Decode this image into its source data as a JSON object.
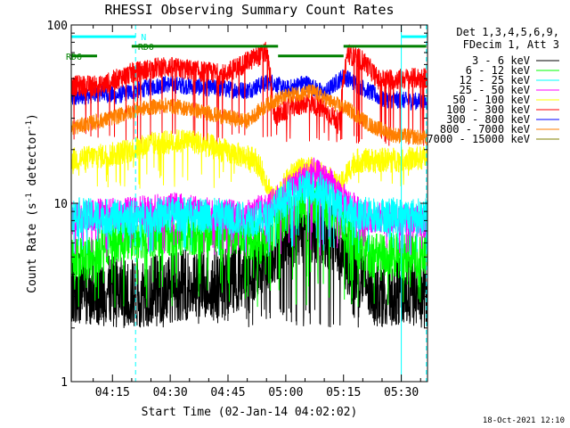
{
  "chart_data": {
    "type": "line",
    "title": "RHESSI Observing Summary Count Rates",
    "xlabel": "Start Time (02-Jan-14 04:02:02)",
    "ylabel_parts": [
      "Count Rate (s",
      "-1",
      " detector",
      "-1",
      ")"
    ],
    "yscale": "log",
    "ylim": [
      1,
      100
    ],
    "xlim_minutes": [
      4.3,
      96.8
    ],
    "y_ticks": [
      {
        "v": 1,
        "label": "1"
      },
      {
        "v": 10,
        "label": "10"
      },
      {
        "v": 100,
        "label": "100"
      }
    ],
    "x_ticks": [
      {
        "m": 15,
        "label": "04:15"
      },
      {
        "m": 30,
        "label": "04:30"
      },
      {
        "m": 45,
        "label": "04:45"
      },
      {
        "m": 60,
        "label": "05:00"
      },
      {
        "m": 75,
        "label": "05:15"
      },
      {
        "m": 90,
        "label": "05:30"
      }
    ],
    "legend_header": [
      "Det 1,3,4,5,6,9,",
      "FDecim 1, Att 3"
    ],
    "series": [
      {
        "name": "3 - 6 keV",
        "color": "#000000",
        "base": [
          [
            4.3,
            3.4
          ],
          [
            20,
            3.1
          ],
          [
            34,
            3.5
          ],
          [
            44,
            3.6
          ],
          [
            52,
            4.3
          ],
          [
            57,
            5.6
          ],
          [
            62,
            6.9
          ],
          [
            67,
            7.4
          ],
          [
            72,
            6.4
          ],
          [
            77,
            4.3
          ],
          [
            82,
            3.4
          ],
          [
            96.8,
            3.1
          ]
        ],
        "noise": 0.2,
        "dip": [
          2,
          2.6
        ],
        "spike": 0.06
      },
      {
        "name": "6 - 12 keV",
        "color": "#00ff00",
        "base": [
          [
            4.3,
            4.9
          ],
          [
            10,
            4.9
          ],
          [
            13,
            6.0
          ],
          [
            20,
            6.5
          ],
          [
            30,
            6.8
          ],
          [
            40,
            6.9
          ],
          [
            49,
            6.9
          ],
          [
            53,
            5.9
          ],
          [
            58,
            7.8
          ],
          [
            64,
            9.8
          ],
          [
            69,
            10.4
          ],
          [
            73,
            8.6
          ],
          [
            77,
            6.2
          ],
          [
            82,
            5.1
          ],
          [
            96.8,
            5.1
          ]
        ],
        "noise": 0.13,
        "dip": [
          2.6,
          4.2
        ],
        "spike": 0.06
      },
      {
        "name": "12 - 25 keV",
        "color": "#00ffff",
        "base": [
          [
            4.3,
            8.6
          ],
          [
            20,
            8.3
          ],
          [
            30,
            8.7
          ],
          [
            40,
            8.6
          ],
          [
            50,
            8.1
          ],
          [
            55,
            8.3
          ],
          [
            60,
            10.6
          ],
          [
            65,
            12.3
          ],
          [
            69,
            12.1
          ],
          [
            74,
            9.4
          ],
          [
            78,
            8.7
          ],
          [
            96.8,
            8.5
          ]
        ],
        "noise": 0.1,
        "dip": [
          5,
          7
        ],
        "spike": 0.05
      },
      {
        "name": "25 - 50 keV",
        "color": "#ff00ff",
        "base": [
          [
            4.3,
            8.4
          ],
          [
            20,
            8.9
          ],
          [
            30,
            9.5
          ],
          [
            40,
            8.8
          ],
          [
            50,
            8.6
          ],
          [
            56,
            9.6
          ],
          [
            62,
            12.6
          ],
          [
            67,
            14.8
          ],
          [
            71,
            13.2
          ],
          [
            75,
            10.6
          ],
          [
            80,
            8.4
          ],
          [
            96.8,
            7.8
          ]
        ],
        "noise": 0.09,
        "dip": [
          5,
          7
        ],
        "spike": 0.05
      },
      {
        "name": "50 - 100 keV",
        "color": "#ffff00",
        "base": [
          [
            4.3,
            17.5
          ],
          [
            15,
            18.8
          ],
          [
            20,
            19.9
          ],
          [
            25,
            21.5
          ],
          [
            35,
            22.6
          ],
          [
            45,
            19.4
          ],
          [
            52,
            17.6
          ],
          [
            57,
            10.3
          ],
          [
            62,
            14.8
          ],
          [
            66,
            15.8
          ],
          [
            70,
            14.3
          ],
          [
            74,
            12.3
          ],
          [
            78,
            17.3
          ],
          [
            96.8,
            17.9
          ]
        ],
        "noise": 0.07,
        "dip": [
          12,
          16
        ],
        "spike": 0.04
      },
      {
        "name": "100 - 300 keV",
        "color": "#ff0000",
        "base": [
          [
            4.3,
            45.5
          ],
          [
            12,
            45.5
          ],
          [
            15,
            48.5
          ],
          [
            20,
            53.8
          ],
          [
            28,
            58.4
          ],
          [
            34,
            56.3
          ],
          [
            44,
            52.7
          ],
          [
            50,
            62.1
          ],
          [
            55,
            70.5
          ],
          [
            57,
            30.1
          ],
          [
            61,
            34.2
          ],
          [
            66,
            37.0
          ],
          [
            70,
            33.4
          ],
          [
            74,
            28.2
          ],
          [
            76,
            69.3
          ],
          [
            80,
            63.2
          ],
          [
            84,
            49.3
          ],
          [
            96.8,
            50.5
          ]
        ],
        "noise": 0.06,
        "dip": [
          21,
          25
        ],
        "spike": 0.04
      },
      {
        "name": "300 - 800 keV",
        "color": "#0000ff",
        "base": [
          [
            4.3,
            38.4
          ],
          [
            12,
            41.7
          ],
          [
            16,
            40.0
          ],
          [
            22,
            43.4
          ],
          [
            29,
            46.7
          ],
          [
            34,
            45.6
          ],
          [
            42,
            44.1
          ],
          [
            50,
            43.0
          ],
          [
            56,
            48.3
          ],
          [
            60,
            43.4
          ],
          [
            65,
            47.5
          ],
          [
            70,
            41.1
          ],
          [
            75,
            51.5
          ],
          [
            80,
            44.5
          ],
          [
            85,
            38.4
          ],
          [
            96.8,
            37.0
          ]
        ],
        "noise": 0.05,
        "dip": null,
        "spike": 0.03
      },
      {
        "name": "800 - 7000 keV",
        "color": "#ff7f00",
        "base": [
          [
            4.3,
            26.4
          ],
          [
            15,
            30.1
          ],
          [
            22,
            33.9
          ],
          [
            29,
            35.4
          ],
          [
            34,
            34.2
          ],
          [
            44,
            30.5
          ],
          [
            50,
            28.9
          ],
          [
            56,
            36.6
          ],
          [
            61,
            40.5
          ],
          [
            67,
            42.3
          ],
          [
            72,
            36.6
          ],
          [
            76,
            33.9
          ],
          [
            82,
            27.3
          ],
          [
            88,
            24.2
          ],
          [
            96.8,
            23.1
          ]
        ],
        "noise": 0.045,
        "dip": null,
        "spike": 0.03
      },
      {
        "name": "7000 - 15000 keV",
        "color": "#808000",
        "base": [
          [
            4.3,
            0
          ],
          [
            96.8,
            0
          ]
        ],
        "noise": 0,
        "dip": null,
        "spike": 0
      }
    ],
    "annotations": [
      {
        "id": "n-bar",
        "label": "N",
        "color": "#00ffff",
        "y": 86,
        "segments": [
          [
            4.3,
            21
          ],
          [
            90,
            96.5
          ]
        ]
      },
      {
        "id": "rd0",
        "label": "RD0",
        "color": "#008000",
        "y": 76,
        "segments": [
          [
            20,
            58
          ],
          [
            75,
            96.5
          ]
        ]
      },
      {
        "id": "rd6",
        "label": "RD6",
        "color": "#008000",
        "y": 67,
        "segments": [
          [
            4.3,
            11
          ],
          [
            58,
            75
          ]
        ]
      }
    ],
    "vlines": [
      {
        "m": 4.3,
        "color": "#00ffff",
        "style": "solid"
      },
      {
        "m": 21,
        "color": "#00ffff",
        "style": "dashed"
      },
      {
        "m": 90,
        "color": "#00ffff",
        "style": "solid"
      },
      {
        "m": 96.5,
        "color": "#00ffff",
        "style": "dashed"
      }
    ],
    "timestamp": "18-Oct-2021 12:10"
  }
}
